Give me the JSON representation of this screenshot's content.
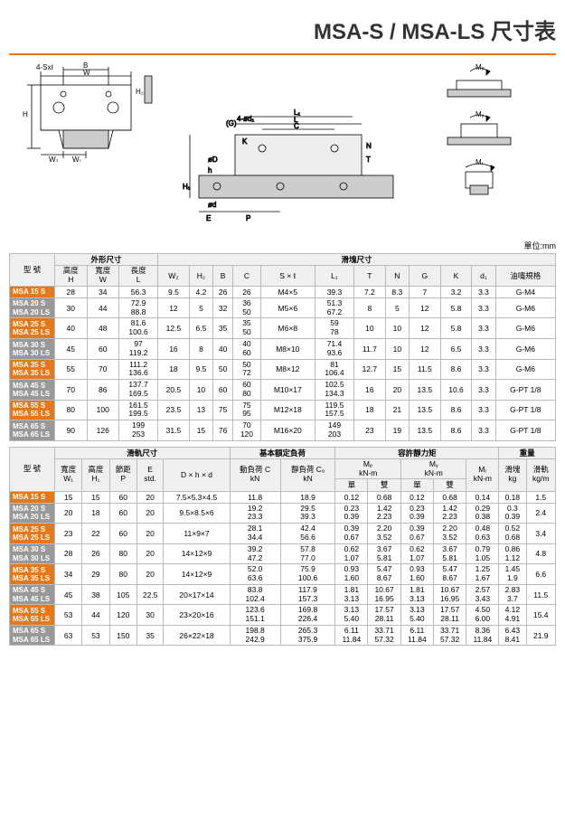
{
  "title": "MSA-S / MSA-LS 尺寸表",
  "unit_label": "單位:mm",
  "header1": {
    "model": "型 號",
    "outer": "外形尺寸",
    "slider": "滑塊尺寸",
    "H": "高度\nH",
    "W": "寬度\nW",
    "L": "長度\nL",
    "W2": "W₂",
    "H2": "H₂",
    "B": "B",
    "C": "C",
    "Sxl": "S × ℓ",
    "L1": "L₁",
    "T": "T",
    "N": "N",
    "G": "G",
    "K": "K",
    "d1": "d₁",
    "oil": "油嘴規格"
  },
  "table1": [
    {
      "m1": "MSA 15 S",
      "m2": null,
      "H": "28",
      "W": "34",
      "L": "56.3",
      "W2": "9.5",
      "H2": "4.2",
      "B": "26",
      "C": "26",
      "Sxl": "M4×5",
      "L1": "39.3",
      "T": "7.2",
      "N": "8.3",
      "G": "7",
      "K": "3.2",
      "d1": "3.3",
      "oil": "G-M4"
    },
    {
      "m1": "MSA 20 S",
      "m2": "MSA 20 LS",
      "H": "30",
      "W": "44",
      "L": "72.9\n88.8",
      "W2": "12",
      "H2": "5",
      "B": "32",
      "C": "36\n50",
      "Sxl": "M5×6",
      "L1": "51.3\n67.2",
      "T": "8",
      "N": "5",
      "G": "12",
      "K": "5.8",
      "d1": "3.3",
      "oil": "G-M6"
    },
    {
      "m1": "MSA 25 S",
      "m2": "MSA 25 LS",
      "H": "40",
      "W": "48",
      "L": "81.6\n100.6",
      "W2": "12.5",
      "H2": "6.5",
      "B": "35",
      "C": "35\n50",
      "Sxl": "M6×8",
      "L1": "59\n78",
      "T": "10",
      "N": "10",
      "G": "12",
      "K": "5.8",
      "d1": "3.3",
      "oil": "G-M6"
    },
    {
      "m1": "MSA 30 S",
      "m2": "MSA 30 LS",
      "H": "45",
      "W": "60",
      "L": "97\n119.2",
      "W2": "16",
      "H2": "8",
      "B": "40",
      "C": "40\n60",
      "Sxl": "M8×10",
      "L1": "71.4\n93.6",
      "T": "11.7",
      "N": "10",
      "G": "12",
      "K": "6.5",
      "d1": "3.3",
      "oil": "G-M6"
    },
    {
      "m1": "MSA 35 S",
      "m2": "MSA 35 LS",
      "H": "55",
      "W": "70",
      "L": "111.2\n136.6",
      "W2": "18",
      "H2": "9.5",
      "B": "50",
      "C": "50\n72",
      "Sxl": "M8×12",
      "L1": "81\n106.4",
      "T": "12.7",
      "N": "15",
      "G": "11.5",
      "K": "8.6",
      "d1": "3.3",
      "oil": "G-M6"
    },
    {
      "m1": "MSA 45 S",
      "m2": "MSA 45 LS",
      "H": "70",
      "W": "86",
      "L": "137.7\n169.5",
      "W2": "20.5",
      "H2": "10",
      "B": "60",
      "C": "60\n80",
      "Sxl": "M10×17",
      "L1": "102.5\n134.3",
      "T": "16",
      "N": "20",
      "G": "13.5",
      "K": "10.6",
      "d1": "3.3",
      "oil": "G-PT 1/8"
    },
    {
      "m1": "MSA 55 S",
      "m2": "MSA 55 LS",
      "H": "80",
      "W": "100",
      "L": "161.5\n199.5",
      "W2": "23.5",
      "H2": "13",
      "B": "75",
      "C": "75\n95",
      "Sxl": "M12×18",
      "L1": "119.5\n157.5",
      "T": "18",
      "N": "21",
      "G": "13.5",
      "K": "8.6",
      "d1": "3.3",
      "oil": "G-PT 1/8"
    },
    {
      "m1": "MSA 65 S",
      "m2": "MSA 65 LS",
      "H": "90",
      "W": "126",
      "L": "199\n253",
      "W2": "31.5",
      "H2": "15",
      "B": "76",
      "C": "70\n120",
      "Sxl": "M16×20",
      "L1": "149\n203",
      "T": "23",
      "N": "19",
      "G": "13.5",
      "K": "8.6",
      "d1": "3.3",
      "oil": "G-PT 1/8"
    }
  ],
  "header2": {
    "rail": "滑軌尺寸",
    "basic": "基本額定負荷",
    "static": "容許靜力矩",
    "weight": "重量",
    "W1": "寬度\nW₁",
    "H1": "高度\nH₁",
    "P": "節距\nP",
    "E": "E\nstd.",
    "Dhd": "D × h × d",
    "C": "動負荷 C\nkN",
    "Co": "靜負荷 Cₒ\nkN",
    "Mp": "Mₚ\nkN-m",
    "My": "Mᵧ\nkN-m",
    "Mr": "Mᵣ\nkN-m",
    "single": "單",
    "double": "雙",
    "wslider": "滑塊\nkg",
    "wrail": "滑軌\nkg/m"
  },
  "table2": [
    {
      "m1": "MSA 15 S",
      "m2": null,
      "W1": "15",
      "H1": "15",
      "P": "60",
      "E": "20",
      "Dhd": "7.5×5.3×4.5",
      "C": "11.8",
      "Co": "18.9",
      "Mp1": "0.12",
      "Mp2": "0.68",
      "My1": "0.12",
      "My2": "0.68",
      "Mr": "0.14",
      "ws": "0.18",
      "wr": "1.5"
    },
    {
      "m1": "MSA 20 S",
      "m2": "MSA 20 LS",
      "W1": "20",
      "H1": "18",
      "P": "60",
      "E": "20",
      "Dhd": "9.5×8.5×6",
      "C": "19.2\n23.3",
      "Co": "29.5\n39.3",
      "Mp1": "0.23\n0.39",
      "Mp2": "1.42\n2.23",
      "My1": "0.23\n0.39",
      "My2": "1.42\n2.23",
      "Mr": "0.29\n0.38",
      "ws": "0.3\n0.39",
      "wr": "2.4"
    },
    {
      "m1": "MSA 25 S",
      "m2": "MSA 25 LS",
      "W1": "23",
      "H1": "22",
      "P": "60",
      "E": "20",
      "Dhd": "11×9×7",
      "C": "28.1\n34.4",
      "Co": "42.4\n56.6",
      "Mp1": "0.39\n0.67",
      "Mp2": "2.20\n3.52",
      "My1": "0.39\n0.67",
      "My2": "2.20\n3.52",
      "Mr": "0.48\n0.63",
      "ws": "0.52\n0.68",
      "wr": "3.4"
    },
    {
      "m1": "MSA 30 S",
      "m2": "MSA 30 LS",
      "W1": "28",
      "H1": "26",
      "P": "80",
      "E": "20",
      "Dhd": "14×12×9",
      "C": "39.2\n47.2",
      "Co": "57.8\n77.0",
      "Mp1": "0.62\n1.07",
      "Mp2": "3.67\n5.81",
      "My1": "0.62\n1.07",
      "My2": "3.67\n5.81",
      "Mr": "0.79\n1.05",
      "ws": "0.86\n1.12",
      "wr": "4.8"
    },
    {
      "m1": "MSA 35 S",
      "m2": "MSA 35 LS",
      "W1": "34",
      "H1": "29",
      "P": "80",
      "E": "20",
      "Dhd": "14×12×9",
      "C": "52.0\n63.6",
      "Co": "75.9\n100.6",
      "Mp1": "0.93\n1.60",
      "Mp2": "5.47\n8.67",
      "My1": "0.93\n1.60",
      "My2": "5.47\n8.67",
      "Mr": "1.25\n1.67",
      "ws": "1.45\n1.9",
      "wr": "6.6"
    },
    {
      "m1": "MSA 45 S",
      "m2": "MSA 45 LS",
      "W1": "45",
      "H1": "38",
      "P": "105",
      "E": "22.5",
      "Dhd": "20×17×14",
      "C": "83.8\n102.4",
      "Co": "117.9\n157.3",
      "Mp1": "1.81\n3.13",
      "Mp2": "10.67\n16.95",
      "My1": "1.81\n3.13",
      "My2": "10.67\n16.95",
      "Mr": "2.57\n3.43",
      "ws": "2.83\n3.7",
      "wr": "11.5"
    },
    {
      "m1": "MSA 55 S",
      "m2": "MSA 55 LS",
      "W1": "53",
      "H1": "44",
      "P": "120",
      "E": "30",
      "Dhd": "23×20×16",
      "C": "123.6\n151.1",
      "Co": "169.8\n226.4",
      "Mp1": "3.13\n5.40",
      "Mp2": "17.57\n28.11",
      "My1": "3.13\n5.40",
      "My2": "17.57\n28.11",
      "Mr": "4.50\n6.00",
      "ws": "4.12\n4.91",
      "wr": "15.4"
    },
    {
      "m1": "MSA 65 S",
      "m2": "MSA 65 LS",
      "W1": "63",
      "H1": "53",
      "P": "150",
      "E": "35",
      "Dhd": "26×22×18",
      "C": "198.8\n242.9",
      "Co": "265.3\n375.9",
      "Mp1": "6.11\n11.84",
      "Mp2": "33.71\n57.32",
      "My1": "6.11\n11.84",
      "My2": "33.71\n57.32",
      "Mr": "8.36\n11.84",
      "ws": "6.43\n8.41",
      "wr": "21.9"
    }
  ],
  "dia_labels": {
    "fourSxl": "4-Sxℓ",
    "W": "W",
    "B": "B",
    "H": "H",
    "H2": "H₂",
    "W2": "W₂",
    "W1": "W₁",
    "G": "(G)",
    "L": "L",
    "L1": "L₁",
    "C": "C",
    "K": "K",
    "N": "N",
    "T": "T",
    "phid1": "4-ød₁",
    "phiD": "øD",
    "phid": "ød",
    "h": "h",
    "H1": "H₁",
    "E": "E",
    "P": "P",
    "Mp": "Mₚ",
    "My": "Mᵧ",
    "Mr": "Mᵣ"
  },
  "colors": {
    "accent": "#e67817",
    "grey": "#999999",
    "border": "#bbbbbb"
  }
}
